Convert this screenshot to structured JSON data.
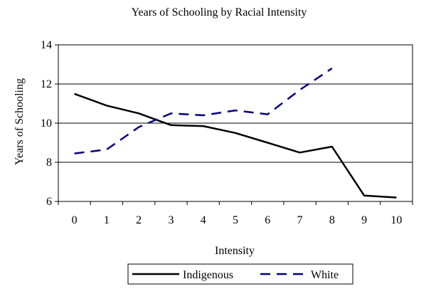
{
  "chart_data": {
    "type": "line",
    "title": "Years of Schooling by Racial Intensity",
    "xlabel": "Intensity",
    "ylabel": "Years of Schooling",
    "categories": [
      "0",
      "1",
      "2",
      "3",
      "4",
      "5",
      "6",
      "7",
      "8",
      "9",
      "10"
    ],
    "ylim": [
      6,
      14
    ],
    "yticks": [
      "6",
      "8",
      "10",
      "12",
      "14"
    ],
    "grid": true,
    "legend_position": "bottom",
    "series": [
      {
        "name": "Indigenous",
        "color": "#000000",
        "style": "solid",
        "values": [
          11.5,
          10.9,
          10.5,
          9.9,
          9.85,
          9.5,
          9.0,
          8.5,
          8.8,
          6.3,
          6.2
        ]
      },
      {
        "name": "White",
        "color": "#000080",
        "style": "dashed",
        "values": [
          8.45,
          8.65,
          9.8,
          10.5,
          10.4,
          10.65,
          10.45,
          11.7,
          12.8,
          null,
          null
        ]
      }
    ]
  }
}
